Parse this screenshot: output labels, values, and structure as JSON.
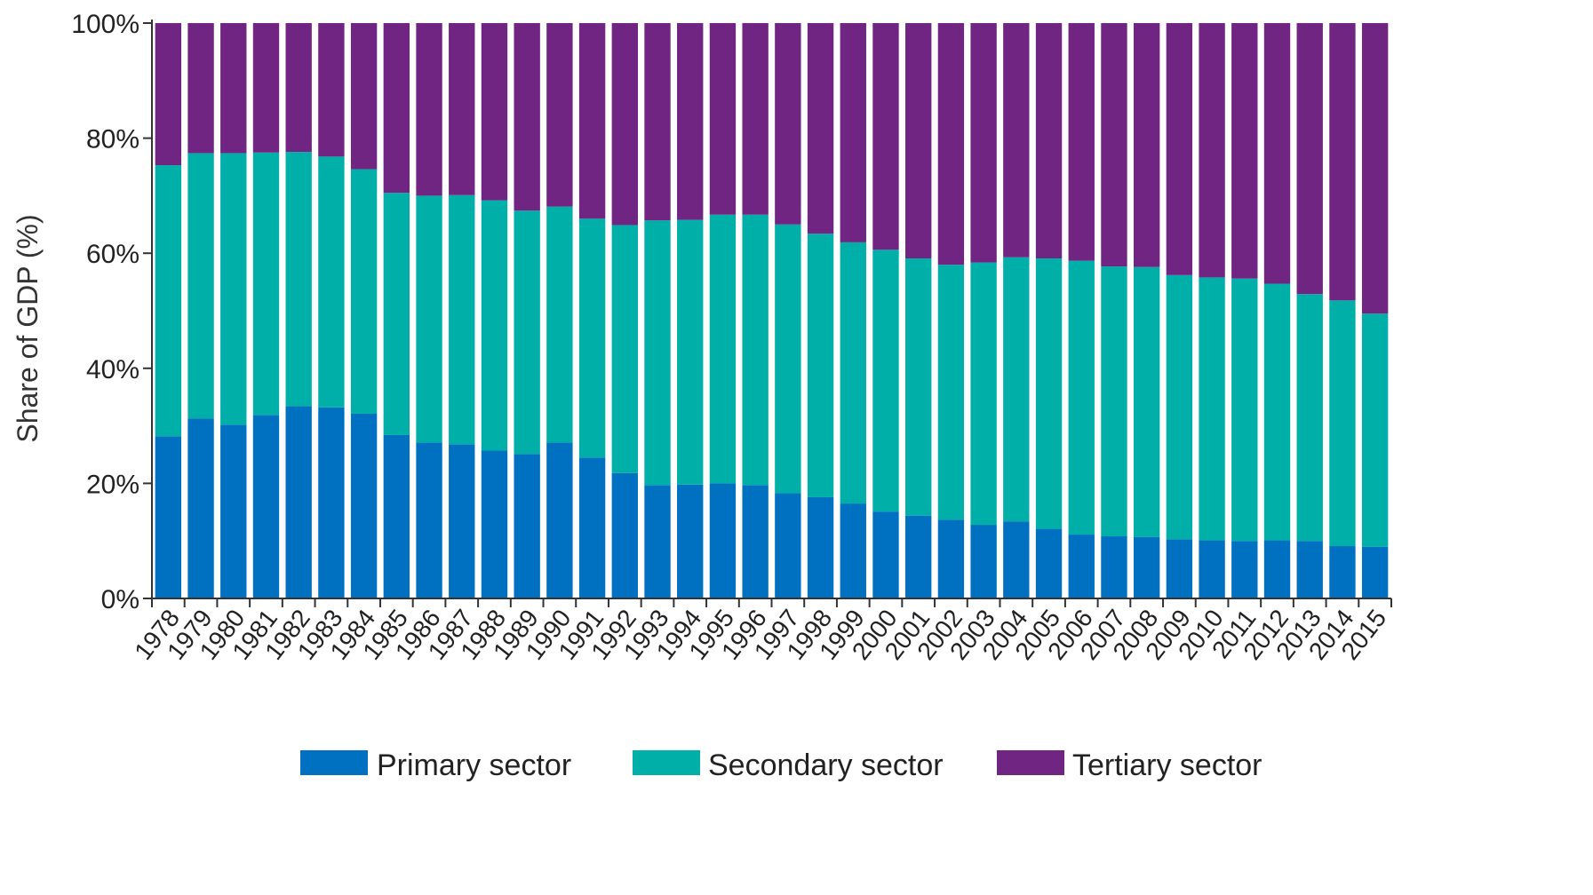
{
  "chart_data": {
    "type": "bar",
    "stacked": true,
    "percent_stacked": true,
    "ylabel": "Share of GDP (%)",
    "xlabel": "",
    "ylim": [
      0,
      100
    ],
    "yticks": [
      "0%",
      "20%",
      "40%",
      "60%",
      "80%",
      "100%"
    ],
    "categories": [
      "1978",
      "1979",
      "1980",
      "1981",
      "1982",
      "1983",
      "1984",
      "1985",
      "1986",
      "1987",
      "1988",
      "1989",
      "1990",
      "1991",
      "1992",
      "1993",
      "1994",
      "1995",
      "1996",
      "1997",
      "1998",
      "1999",
      "2000",
      "2001",
      "2002",
      "2003",
      "2004",
      "2005",
      "2006",
      "2007",
      "2008",
      "2009",
      "2010",
      "2011",
      "2012",
      "2013",
      "2014",
      "2015"
    ],
    "series": [
      {
        "name": "Primary sector",
        "color": "#0070C0",
        "values": [
          28.2,
          31.3,
          30.2,
          31.9,
          33.4,
          33.2,
          32.1,
          28.4,
          27.1,
          26.8,
          25.7,
          25.1,
          27.1,
          24.5,
          21.8,
          19.7,
          19.8,
          20.0,
          19.7,
          18.3,
          17.6,
          16.5,
          15.1,
          14.4,
          13.7,
          12.8,
          13.4,
          12.1,
          11.1,
          10.8,
          10.7,
          10.3,
          10.1,
          10.0,
          10.1,
          10.0,
          9.1,
          9.0
        ]
      },
      {
        "name": "Secondary sector",
        "color": "#00B0A8",
        "values": [
          47.1,
          46.1,
          47.2,
          45.6,
          44.2,
          43.6,
          42.5,
          42.1,
          42.9,
          43.3,
          43.5,
          42.3,
          41.0,
          41.5,
          43.1,
          46.0,
          46.0,
          46.7,
          47.0,
          46.7,
          45.8,
          45.4,
          45.5,
          44.7,
          44.3,
          45.6,
          45.9,
          47.0,
          47.6,
          46.9,
          46.9,
          45.9,
          45.7,
          45.6,
          44.6,
          42.9,
          42.7,
          40.5
        ]
      },
      {
        "name": "Tertiary sector",
        "color": "#6F2581",
        "values": [
          24.7,
          22.6,
          22.6,
          22.5,
          22.4,
          23.2,
          25.4,
          29.5,
          30.0,
          29.9,
          30.8,
          32.6,
          31.9,
          34.0,
          35.1,
          34.3,
          34.2,
          33.3,
          33.3,
          35.0,
          36.6,
          38.1,
          39.4,
          40.9,
          42.0,
          41.6,
          40.7,
          40.9,
          41.3,
          42.3,
          42.4,
          43.8,
          44.2,
          44.4,
          45.3,
          47.1,
          48.2,
          50.5
        ]
      }
    ],
    "legend_position": "bottom"
  }
}
